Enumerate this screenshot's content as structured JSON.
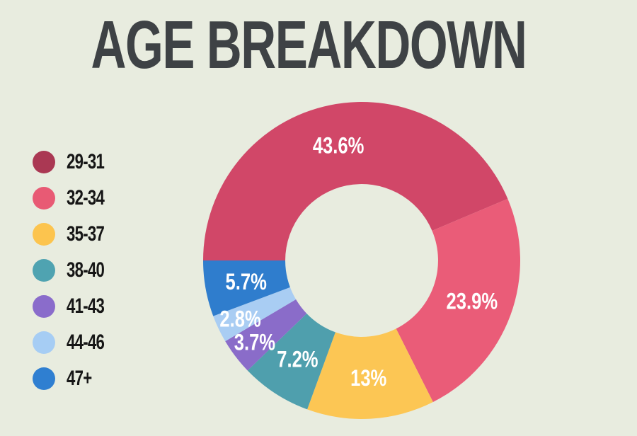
{
  "page": {
    "background_color": "#e8ecdf"
  },
  "chart_data": {
    "type": "pie",
    "subtype": "donut",
    "title": "AGE BREAKDOWN",
    "title_color": "#3e4245",
    "categories": [
      "29-31",
      "32-34",
      "35-37",
      "38-40",
      "41-43",
      "44-46",
      "47+"
    ],
    "values": [
      43.6,
      23.9,
      13,
      7.2,
      3.7,
      2.8,
      5.7
    ],
    "slice_labels": [
      "43.6%",
      "23.9%",
      "13%",
      "7.2%",
      "3.7%",
      "2.8%",
      "5.7%"
    ],
    "slice_colors": [
      "#d14768",
      "#ea5c78",
      "#fcc654",
      "#4f9fad",
      "#8a6cc9",
      "#a9cdf3",
      "#2f7dcd"
    ],
    "data_label_color": "#ffffff",
    "start_angle_deg": 270,
    "direction": "clockwise",
    "inner_radius_ratio": 0.482,
    "background_color": "#e8ecdf",
    "legend": {
      "position": "left",
      "text_color": "#161616",
      "items": [
        {
          "label": "29-31",
          "color": "#aa3853"
        },
        {
          "label": "32-34",
          "color": "#e85a74"
        },
        {
          "label": "35-37",
          "color": "#fcc44e"
        },
        {
          "label": "38-40",
          "color": "#4fa3b1"
        },
        {
          "label": "41-43",
          "color": "#8a6ccb"
        },
        {
          "label": "44-46",
          "color": "#a6cdf4"
        },
        {
          "label": "47+",
          "color": "#2f7fd1"
        }
      ]
    }
  }
}
